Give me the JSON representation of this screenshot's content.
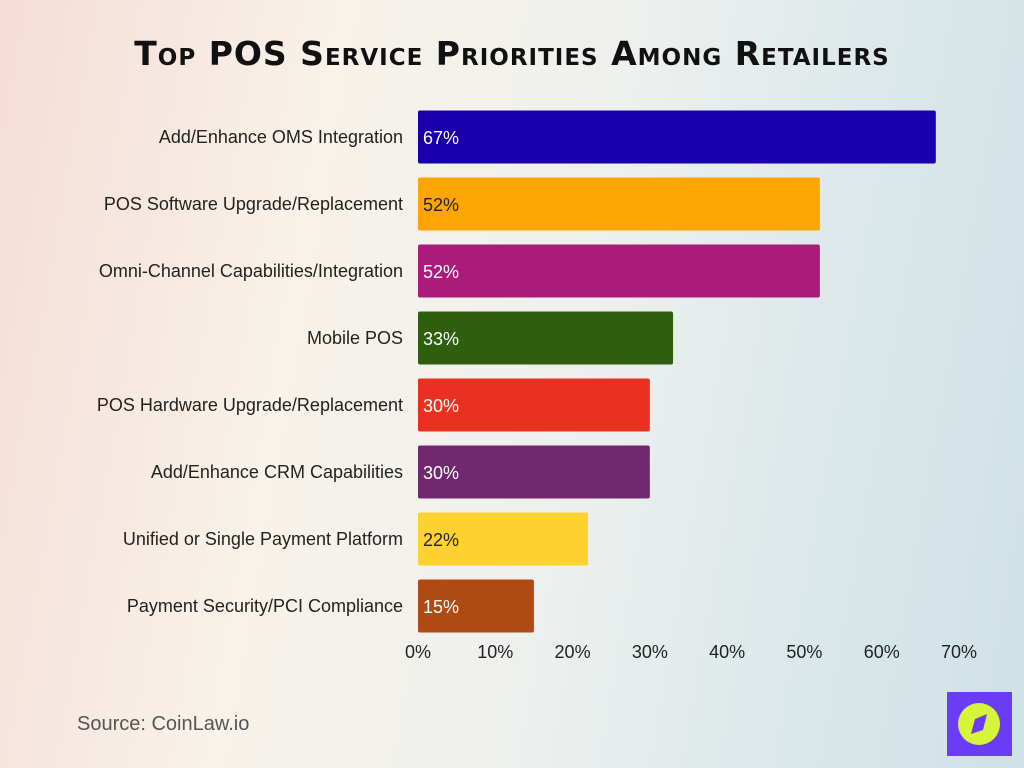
{
  "chart_data": {
    "type": "bar",
    "orientation": "horizontal",
    "title": "Top POS Service Priorities Among Retailers",
    "categories": [
      "Add/Enhance OMS Integration",
      "POS Software Upgrade/Replacement",
      "Omni-Channel Capabilities/Integration",
      "Mobile POS",
      "POS Hardware Upgrade/Replacement",
      "Add/Enhance CRM Capabilities",
      "Unified or Single Payment Platform",
      "Payment Security/PCI Compliance"
    ],
    "values": [
      67,
      52,
      52,
      33,
      30,
      30,
      22,
      15
    ],
    "data_labels": [
      "67%",
      "52%",
      "52%",
      "33%",
      "30%",
      "30%",
      "22%",
      "15%"
    ],
    "colors": [
      "#1a00ad",
      "#fca503",
      "#ab1c7a",
      "#2f5e0f",
      "#ea3121",
      "#70296f",
      "#fdd22f",
      "#b04a13"
    ],
    "label_colors": [
      "#ffffff",
      "#222222",
      "#ffffff",
      "#ffffff",
      "#ffffff",
      "#ffffff",
      "#222222",
      "#ffffff"
    ],
    "xlim": [
      0,
      70
    ],
    "xticks": [
      "0%",
      "10%",
      "20%",
      "30%",
      "40%",
      "50%",
      "60%",
      "70%"
    ],
    "grid": false,
    "legend": "none"
  },
  "source": "Source: CoinLaw.io",
  "logo": {
    "icon": "compass-icon",
    "bg": "#6b3cf5",
    "fg": "#d6f53a"
  }
}
